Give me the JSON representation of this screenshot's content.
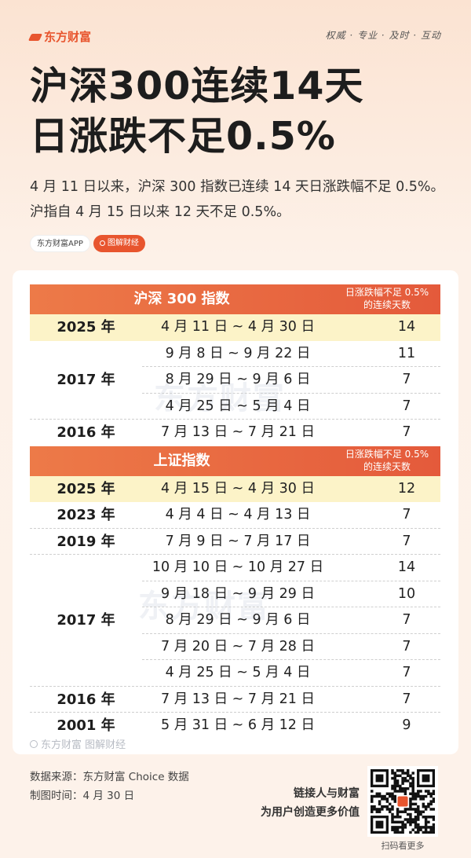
{
  "brand": "东方财富",
  "slogan": "权威 · 专业 · 及时 · 互动",
  "headline": {
    "line1": "沪深300连续14天",
    "line2": "日涨跌不足0.5%"
  },
  "intro": "4 月 11 日以来，沪深 300 指数已连续 14 天日涨跌幅不足 0.5%。沪指自 4 月 15 日以来 12 天不足 0.5%。",
  "tags": [
    "东方财富APP",
    "图解财经"
  ],
  "watermark": "东方财富",
  "card_footer": "东方财富 图解财经",
  "tables": [
    {
      "title": "沪深 300 指数",
      "column": {
        "line1": "日涨跌幅不足 0.5%",
        "line2": "的连续天数"
      },
      "groups": [
        {
          "year": "2025 年",
          "rows": [
            {
              "range": "4 月 11 日 ~ 4 月 30 日",
              "days": "14"
            }
          ]
        },
        {
          "year": "2017 年",
          "rows": [
            {
              "range": "9 月 8 日 ~ 9 月 22 日",
              "days": "11"
            },
            {
              "range": "8 月 29 日 ~ 9 月 6 日",
              "days": "7"
            },
            {
              "range": "4 月 25 日 ~ 5 月 4 日",
              "days": "7"
            }
          ]
        },
        {
          "year": "2016 年",
          "rows": [
            {
              "range": "7 月 13 日 ~ 7 月 21 日",
              "days": "7"
            }
          ]
        }
      ]
    },
    {
      "title": "上证指数",
      "column": {
        "line1": "日涨跌幅不足 0.5%",
        "line2": "的连续天数"
      },
      "groups": [
        {
          "year": "2025 年",
          "rows": [
            {
              "range": "4 月 15 日 ~ 4 月 30 日",
              "days": "12"
            }
          ]
        },
        {
          "year": "2023 年",
          "rows": [
            {
              "range": "4 月 4 日 ~ 4 月 13 日",
              "days": "7"
            }
          ]
        },
        {
          "year": "2019 年",
          "rows": [
            {
              "range": "7 月 9 日 ~ 7 月 17 日",
              "days": "7"
            }
          ]
        },
        {
          "year": "2017 年",
          "rows": [
            {
              "range": "10 月 10 日 ~ 10 月 27 日",
              "days": "14"
            },
            {
              "range": "9 月 18 日 ~ 9 月 29 日",
              "days": "10"
            },
            {
              "range": "8 月 29 日 ~ 9 月 6 日",
              "days": "7"
            },
            {
              "range": "7 月 20 日 ~ 7 月 28 日",
              "days": "7"
            },
            {
              "range": "4 月 25 日 ~ 5 月 4 日",
              "days": "7"
            }
          ]
        },
        {
          "year": "2016 年",
          "rows": [
            {
              "range": "7 月 13 日 ~ 7 月 21 日",
              "days": "7"
            }
          ]
        },
        {
          "year": "2001 年",
          "rows": [
            {
              "range": "5 月 31 日 ~ 6 月 12 日",
              "days": "9"
            }
          ]
        }
      ]
    }
  ],
  "footer": {
    "source": "数据来源：东方财富 Choice 数据",
    "date": "制图时间：4 月 30 日",
    "motto1": "链接人与财富",
    "motto2": "为用户创造更多价值",
    "qr_caption": "扫码看更多"
  },
  "colors": {
    "accent": "#e8552e",
    "highlight": "#fcf3c8",
    "header_gradient": [
      "#ed7a48",
      "#e45a3b"
    ]
  }
}
